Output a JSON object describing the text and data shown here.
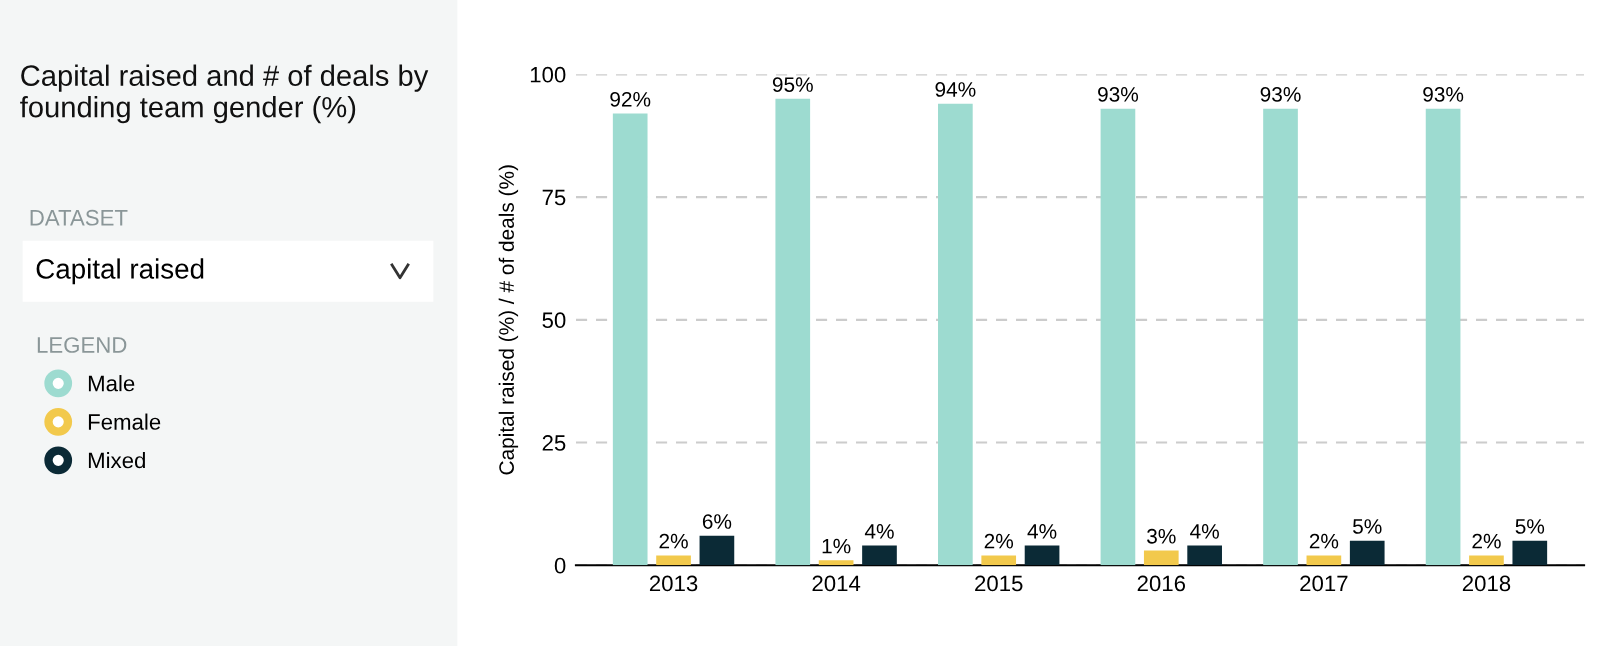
{
  "chart_data": {
    "type": "bar",
    "title": "Capital raised and # of deals by founding team gender (%)",
    "ylabel": "Capital raised (%) / # of deals (%)",
    "annotations": [
      "DATASET",
      "Capital raised"
    ],
    "legend_title": "LEGEND",
    "legend": "left",
    "categories": [
      "2013",
      "2014",
      "2015",
      "2016",
      "2017",
      "2018"
    ],
    "series": [
      {
        "name": "Male",
        "color": "#9ddbd0",
        "values": [
          92,
          95,
          94,
          93,
          93,
          93
        ],
        "value_labels": [
          "92%",
          "95%",
          "94%",
          "93%",
          "93%",
          "93%"
        ]
      },
      {
        "name": "Female",
        "color": "#f2c94c",
        "values": [
          2,
          1,
          2,
          3,
          2,
          2
        ],
        "value_labels": [
          "2%",
          "1%",
          "2%",
          "3%",
          "2%",
          "2%"
        ]
      },
      {
        "name": "Mixed",
        "color": "#0b2a36",
        "values": [
          6,
          4,
          4,
          4,
          5,
          5
        ],
        "value_labels": [
          "6%",
          "4%",
          "4%",
          "4%",
          "5%",
          "5%"
        ]
      }
    ],
    "ylim": [
      0,
      100
    ],
    "yticks": [
      0,
      25,
      50,
      75,
      100
    ],
    "grid": "y"
  }
}
